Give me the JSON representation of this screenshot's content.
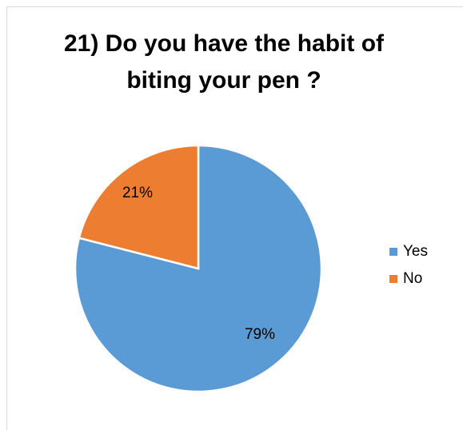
{
  "chart_data": {
    "type": "pie",
    "title": "21) Do you have the habit of\nbiting your pen ?",
    "categories": [
      "Yes",
      "No"
    ],
    "values": [
      79,
      21
    ],
    "data_labels": [
      "79%",
      "21%"
    ],
    "colors": [
      "#5b9bd5",
      "#ed7d31"
    ],
    "legend_position": "right"
  }
}
